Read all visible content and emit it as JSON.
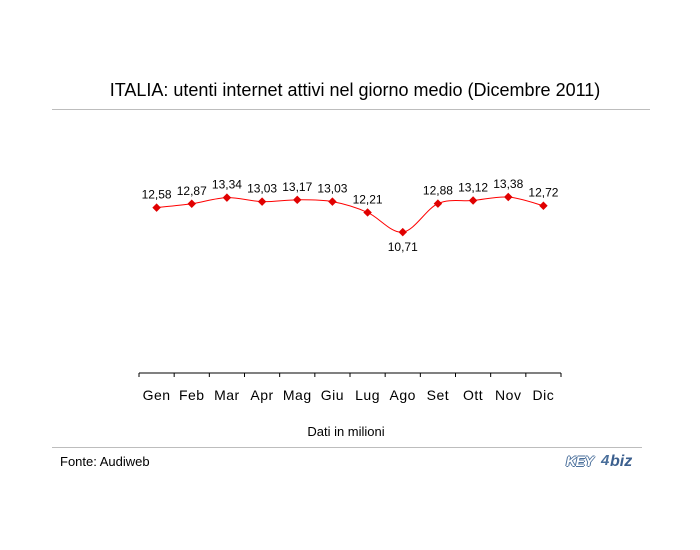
{
  "header": {
    "title": "ITALIA: utenti internet attivi nel giorno medio (Dicembre 2011)"
  },
  "footer": {
    "unit_note": "Dati in milioni",
    "source": "Fonte: Audiweb"
  },
  "logo": {
    "key": "KEY",
    "num": "4",
    "biz": "biz"
  },
  "colors": {
    "series": "#ff0000",
    "marker": "#e00000",
    "rule": "#bdbdbd",
    "logo": "#4a6f9b"
  },
  "chart_data": {
    "type": "line",
    "title": "ITALIA: utenti internet attivi nel giorno medio (Dicembre 2011)",
    "xlabel": "",
    "ylabel": "",
    "categories": [
      "Gen",
      "Feb",
      "Mar",
      "Apr",
      "Mag",
      "Giu",
      "Lug",
      "Ago",
      "Set",
      "Ott",
      "Nov",
      "Dic"
    ],
    "values": [
      12.58,
      12.87,
      13.34,
      13.03,
      13.17,
      13.03,
      12.21,
      10.71,
      12.88,
      13.12,
      13.38,
      12.72
    ],
    "value_labels": [
      "12,58",
      "12,87",
      "13,34",
      "13,03",
      "13,17",
      "13,03",
      "12,21",
      "10,71",
      "12,88",
      "13,12",
      "13,38",
      "12,72"
    ],
    "ylim": [
      0,
      20
    ],
    "grid": false,
    "legend": "none"
  }
}
